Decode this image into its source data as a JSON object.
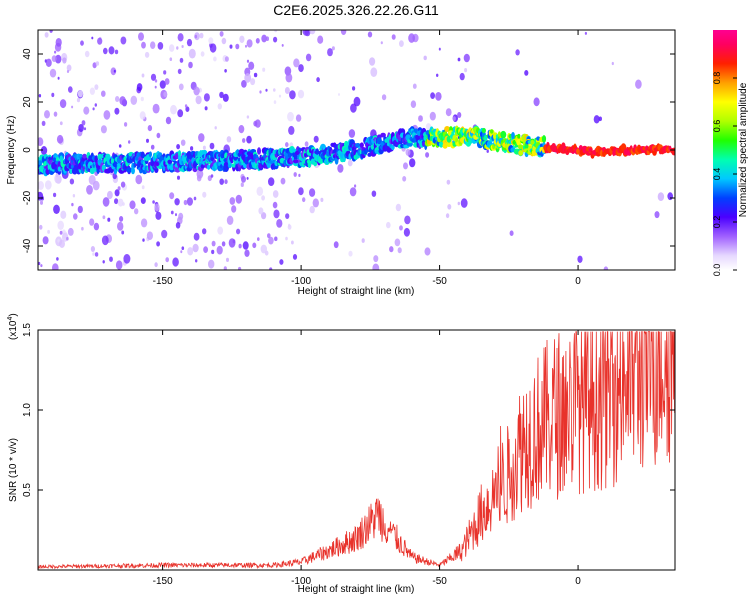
{
  "title": "C2E6.2025.326.22.26.G11",
  "chart_data": [
    {
      "type": "heatmap",
      "xlabel": "Height of straight line (km)",
      "ylabel": "Frequency (Hz)",
      "xlim": [
        -195,
        35
      ],
      "ylim": [
        -50,
        50
      ],
      "xticks": [
        -150,
        -100,
        -50,
        0
      ],
      "yticks": [
        -40,
        -20,
        0,
        20,
        40
      ],
      "colorbar": {
        "label": "Normalized spectral amplitude",
        "range": [
          0,
          1
        ],
        "ticks": [
          "0.0",
          "0.2",
          "0.4",
          "0.6",
          "0.8"
        ]
      },
      "ridge": {
        "description_points": [
          {
            "x": -195,
            "y": -6
          },
          {
            "x": -150,
            "y": -5
          },
          {
            "x": -120,
            "y": -4
          },
          {
            "x": -100,
            "y": -3
          },
          {
            "x": -80,
            "y": 0
          },
          {
            "x": -70,
            "y": 3
          },
          {
            "x": -60,
            "y": 5
          },
          {
            "x": -50,
            "y": 5
          },
          {
            "x": -40,
            "y": 6
          },
          {
            "x": -30,
            "y": 4
          },
          {
            "x": -20,
            "y": 2
          },
          {
            "x": -10,
            "y": 1
          },
          {
            "x": 0,
            "y": 0
          },
          {
            "x": 5,
            "y": -1
          },
          {
            "x": 15,
            "y": 0
          },
          {
            "x": 35,
            "y": 0
          }
        ]
      }
    },
    {
      "type": "line",
      "xlabel": "Height of straight line (km)",
      "ylabel": "SNR (10 * v/v)",
      "multiplier": "(x10",
      "multiplier_exp": "4",
      "xlim": [
        -195,
        35
      ],
      "ylim": [
        0,
        1.5
      ],
      "xticks": [
        -150,
        -100,
        -50,
        0
      ],
      "yticks": [
        "0.5",
        "1.0",
        "1.5"
      ],
      "color": "#e8322b",
      "envelope": [
        {
          "x": -195,
          "y": 0.02
        },
        {
          "x": -150,
          "y": 0.03
        },
        {
          "x": -110,
          "y": 0.03
        },
        {
          "x": -100,
          "y": 0.05
        },
        {
          "x": -90,
          "y": 0.12
        },
        {
          "x": -80,
          "y": 0.2
        },
        {
          "x": -72,
          "y": 0.35
        },
        {
          "x": -68,
          "y": 0.25
        },
        {
          "x": -60,
          "y": 0.08
        },
        {
          "x": -50,
          "y": 0.03
        },
        {
          "x": -42,
          "y": 0.12
        },
        {
          "x": -35,
          "y": 0.35
        },
        {
          "x": -25,
          "y": 0.6
        },
        {
          "x": -20,
          "y": 0.8
        },
        {
          "x": -10,
          "y": 0.95
        },
        {
          "x": 0,
          "y": 1.05
        },
        {
          "x": 10,
          "y": 1.1
        },
        {
          "x": 20,
          "y": 1.25
        },
        {
          "x": 30,
          "y": 1.4
        },
        {
          "x": 35,
          "y": 1.42
        }
      ]
    }
  ]
}
